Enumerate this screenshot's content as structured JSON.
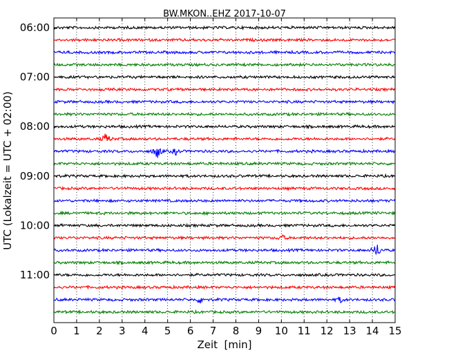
{
  "chart_data": {
    "type": "line",
    "title": "BW.MKON..EHZ 2017-10-07",
    "xlabel": "Zeit  [min]",
    "ylabel": "UTC (Lokalzeit = UTC + 02:00)",
    "xlim": [
      0,
      15
    ],
    "x_ticks": [
      "0",
      "1",
      "2",
      "3",
      "4",
      "5",
      "6",
      "7",
      "8",
      "9",
      "10",
      "11",
      "12",
      "13",
      "14",
      "15"
    ],
    "y_ticks": [
      "06:00",
      "07:00",
      "08:00",
      "09:00",
      "10:00",
      "11:00"
    ],
    "grid": "vertical dotted",
    "colors": [
      "#000000",
      "#ff0000",
      "#0000ff",
      "#008000"
    ],
    "series": [
      {
        "start": "06:00",
        "color": "#000000"
      },
      {
        "start": "06:15",
        "color": "#ff0000"
      },
      {
        "start": "06:30",
        "color": "#0000ff"
      },
      {
        "start": "06:45",
        "color": "#008000"
      },
      {
        "start": "07:00",
        "color": "#000000"
      },
      {
        "start": "07:15",
        "color": "#ff0000"
      },
      {
        "start": "07:30",
        "color": "#0000ff"
      },
      {
        "start": "07:45",
        "color": "#008000"
      },
      {
        "start": "08:00",
        "color": "#000000"
      },
      {
        "start": "08:15",
        "color": "#ff0000",
        "events": [
          {
            "minute": 2.3,
            "amplitude": 0.5
          }
        ]
      },
      {
        "start": "08:30",
        "color": "#0000ff",
        "events": [
          {
            "minute": 4.55,
            "amplitude": 0.6
          },
          {
            "minute": 5.35,
            "amplitude": 0.25
          }
        ]
      },
      {
        "start": "08:45",
        "color": "#008000"
      },
      {
        "start": "09:00",
        "color": "#000000"
      },
      {
        "start": "09:15",
        "color": "#ff0000"
      },
      {
        "start": "09:30",
        "color": "#0000ff"
      },
      {
        "start": "09:45",
        "color": "#008000"
      },
      {
        "start": "10:00",
        "color": "#000000"
      },
      {
        "start": "10:15",
        "color": "#ff0000",
        "events": [
          {
            "minute": 10.0,
            "amplitude": 0.25
          }
        ]
      },
      {
        "start": "10:30",
        "color": "#0000ff",
        "events": [
          {
            "minute": 14.2,
            "amplitude": 0.6
          }
        ]
      },
      {
        "start": "10:45",
        "color": "#008000"
      },
      {
        "start": "11:00",
        "color": "#000000"
      },
      {
        "start": "11:15",
        "color": "#ff0000"
      },
      {
        "start": "11:30",
        "color": "#0000ff",
        "events": [
          {
            "minute": 6.45,
            "amplitude": 0.3
          },
          {
            "minute": 12.6,
            "amplitude": 0.2
          }
        ]
      },
      {
        "start": "11:45",
        "color": "#008000"
      }
    ]
  }
}
